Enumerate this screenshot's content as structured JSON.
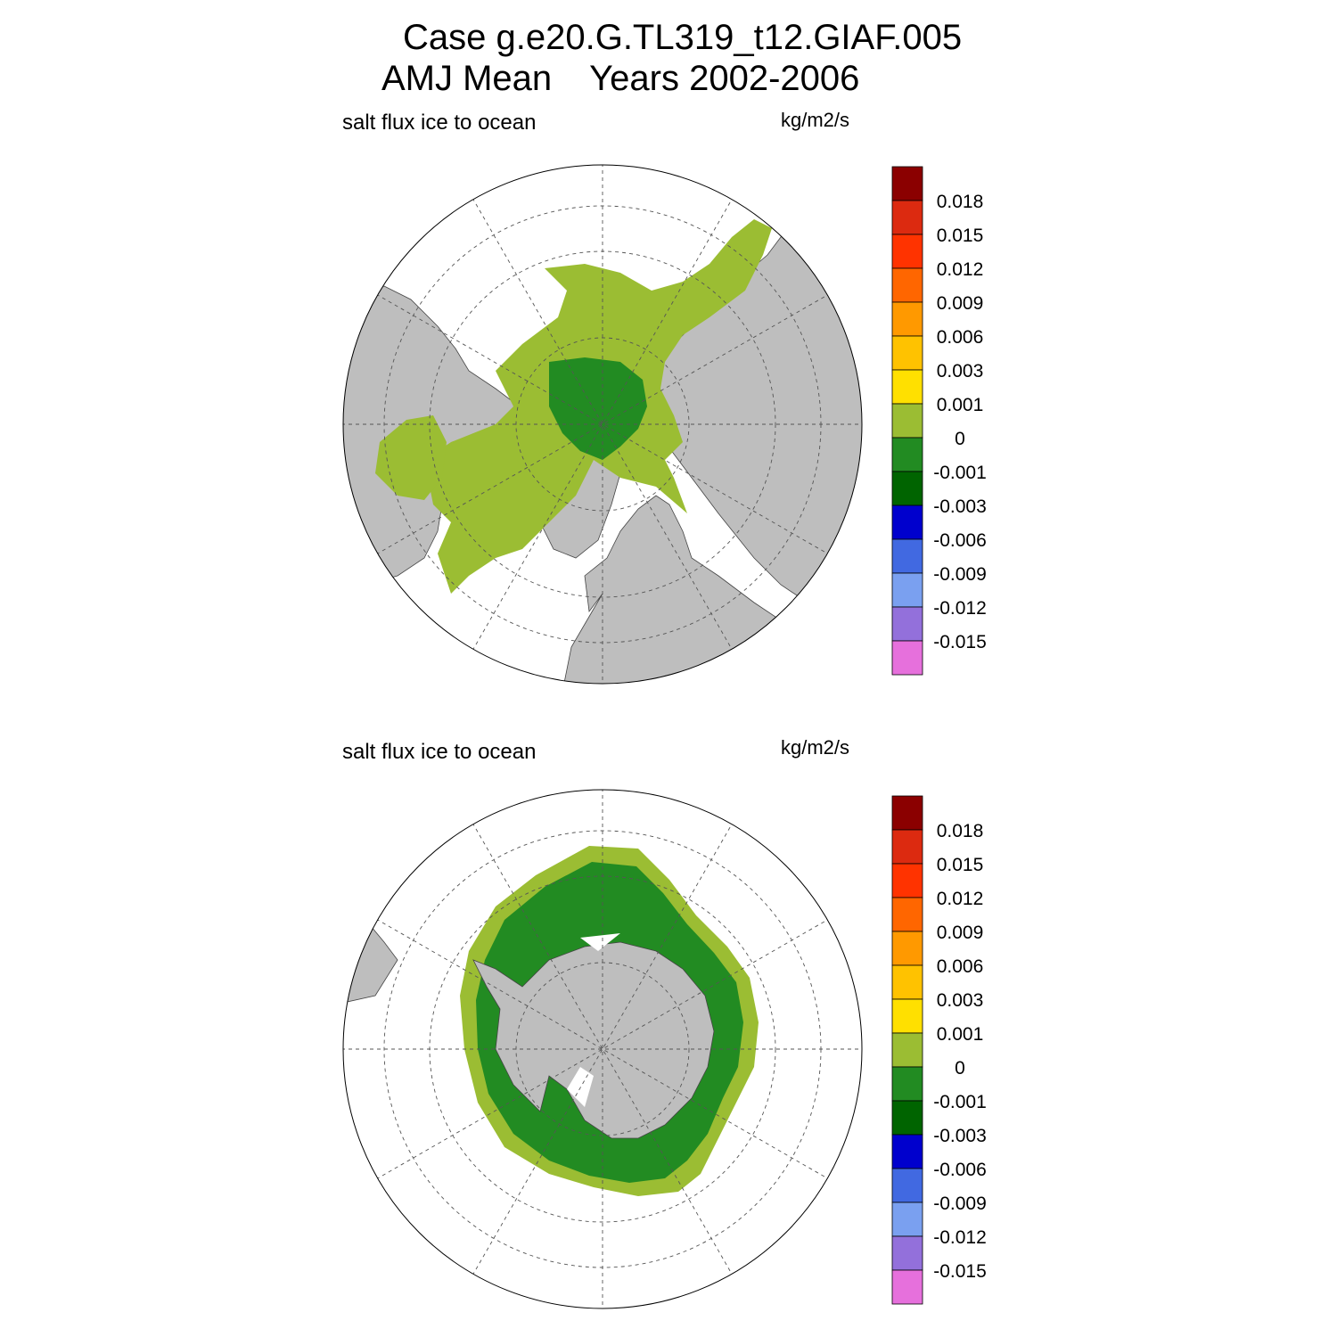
{
  "title": {
    "line1": "Case g.e20.G.TL319_t12.GIAF.005",
    "line2_left": "AMJ Mean",
    "line2_right": "Years 2002-2006"
  },
  "panels": [
    {
      "id": "north",
      "left_label": "salt flux ice to ocean",
      "units": "kg/m2/s",
      "hemisphere": "north"
    },
    {
      "id": "south",
      "left_label": "salt flux ice to ocean",
      "units": "kg/m2/s",
      "hemisphere": "south"
    }
  ],
  "colorbar": {
    "labels": [
      "0.018",
      "0.015",
      "0.012",
      "0.009",
      "0.006",
      "0.003",
      "0.001",
      "0",
      "-0.001",
      "-0.003",
      "-0.006",
      "-0.009",
      "-0.012",
      "-0.015"
    ],
    "colors": [
      "#8b0000",
      "#dc2a10",
      "#ff3300",
      "#ff6600",
      "#ff9900",
      "#ffc200",
      "#ffe000",
      "#9bbd33",
      "#228b22",
      "#006400",
      "#0000cd",
      "#4169e1",
      "#7aa0f0",
      "#9370db",
      "#e670dc"
    ]
  },
  "map_colors": {
    "land": "#bebebe",
    "ocean": "#ffffff",
    "ice_positive": "#9bbd33",
    "ice_negative": "#228b22"
  }
}
